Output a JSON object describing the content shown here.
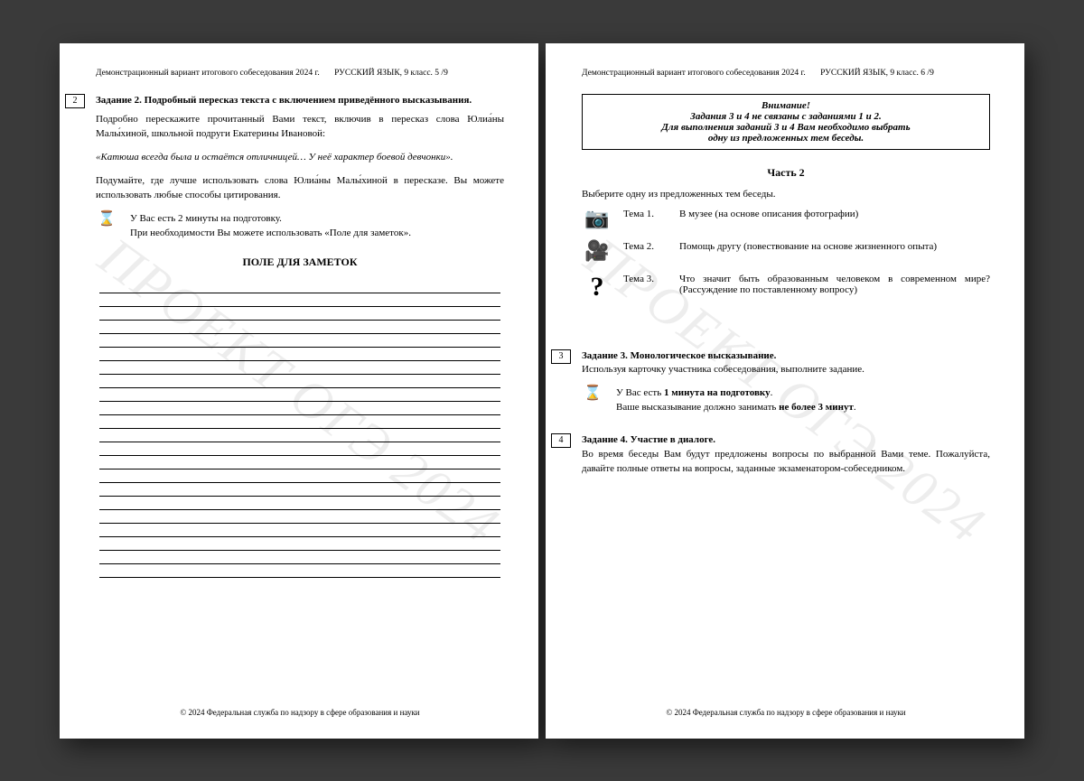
{
  "watermark": "ПРОЕКТ ОГЭ 2024",
  "footer": "© 2024 Федеральная служба по надзору в сфере образования и науки",
  "left": {
    "header_left": "Демонстрационный вариант итогового собеседования 2024 г.",
    "header_right": "РУССКИЙ ЯЗЫК, 9 класс. 5 /9",
    "task_num": "2",
    "task_title": "Задание 2. Подробный пересказ текста с включением приведённого высказывания.",
    "p1": "Подробно перескажите прочитанный Вами текст, включив в пересказ слова Юлиа́ны Малы́хиной, школьной подруги Екатерины Ивановой:",
    "quote": "«Катюша всегда была и остаётся отличницей… У неё характер боевой девчонки».",
    "p2": "Подумайте, где лучше использовать слова Юлиа́ны Малы́хиной в пересказе. Вы можете использовать любые способы цитирования.",
    "timer1": "У Вас есть 2 минуты на подготовку.",
    "timer2": "При необходимости Вы можете использовать «Поле для заметок».",
    "notes_title": "ПОЛЕ ДЛЯ ЗАМЕТОК",
    "note_line_count": 22
  },
  "right": {
    "header_left": "Демонстрационный вариант итогового собеседования 2024 г.",
    "header_right": "РУССКИЙ ЯЗЫК, 9 класс. 6 /9",
    "att_title": "Внимание!",
    "att_l1": "Задания 3 и 4 не связаны с заданиями 1 и 2.",
    "att_l2": "Для выполнения заданий 3 и 4 Вам необходимо выбрать",
    "att_l3": "одну из предложенных тем беседы.",
    "part_title": "Часть 2",
    "choose": "Выберите одну из предложенных тем беседы.",
    "themes": [
      {
        "icon": "📷",
        "label": "Тема 1.",
        "desc": "В музее (на основе описания фотографии)"
      },
      {
        "icon": "🎥",
        "label": "Тема 2.",
        "desc": "Помощь другу (повествование на основе жизненного опыта)"
      },
      {
        "icon": "?",
        "label": "Тема 3.",
        "desc": "Что значит быть образованным человеком в современном мире? (Рассуждение по поставленному вопросу)"
      }
    ],
    "task3_num": "3",
    "task3_title": "Задание 3. Монологическое высказывание.",
    "task3_p": "Используя карточку участника собеседования, выполните задание.",
    "task3_t1a": "У Вас есть ",
    "task3_t1b": "1 минута на подготовку",
    "task3_t2a": "Ваше высказывание должно занимать ",
    "task3_t2b": "не более 3 минут",
    "task4_num": "4",
    "task4_title": "Задание 4. Участие в диалоге.",
    "task4_p": "Во время беседы Вам будут предложены вопросы по выбранной Вами теме. Пожалуйста, давайте полные ответы на вопросы, заданные экзаменатором-собеседником."
  }
}
